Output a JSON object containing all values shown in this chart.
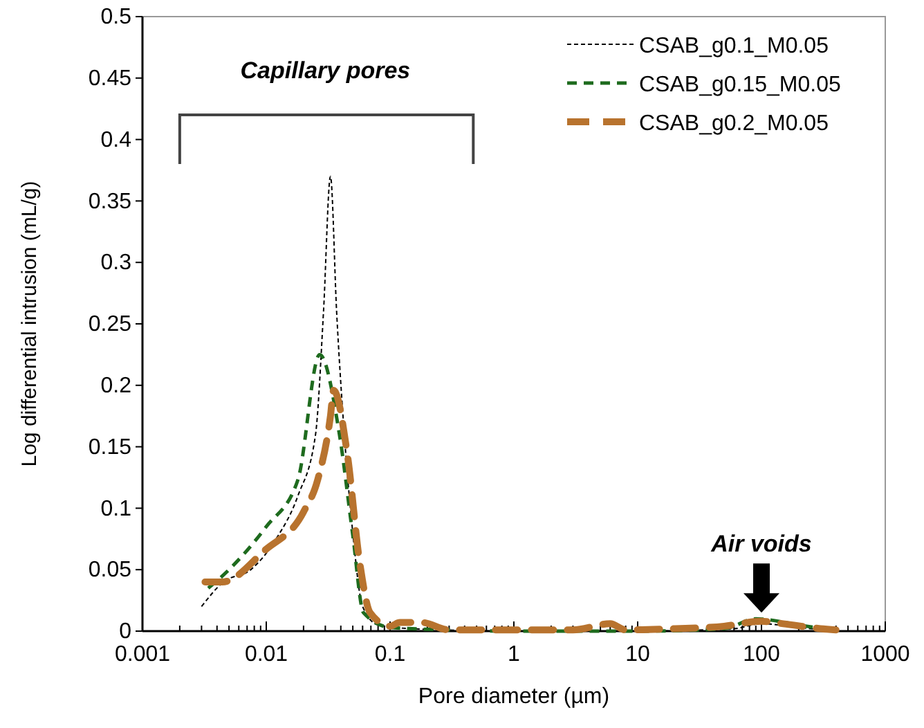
{
  "chart_data": {
    "type": "line",
    "xlabel": "Pore diameter (µm)",
    "ylabel": "Log differential intrusion (mL/g)",
    "log": "x",
    "legend": "top right",
    "grid": false,
    "xlim": [
      0.001,
      1000
    ],
    "ylim": [
      0,
      0.5
    ],
    "xticks": [
      {
        "value": 0.001,
        "label": "0.001"
      },
      {
        "value": 0.002,
        "label": null
      },
      {
        "value": 0.003,
        "label": null
      },
      {
        "value": 0.004,
        "label": null
      },
      {
        "value": 0.005,
        "label": null
      },
      {
        "value": 0.006,
        "label": null
      },
      {
        "value": 0.007,
        "label": null
      },
      {
        "value": 0.008,
        "label": null
      },
      {
        "value": 0.009,
        "label": null
      },
      {
        "value": 0.01,
        "label": "0.01"
      },
      {
        "value": 0.02,
        "label": null
      },
      {
        "value": 0.03,
        "label": null
      },
      {
        "value": 0.04,
        "label": null
      },
      {
        "value": 0.05,
        "label": null
      },
      {
        "value": 0.06,
        "label": null
      },
      {
        "value": 0.07,
        "label": null
      },
      {
        "value": 0.08,
        "label": null
      },
      {
        "value": 0.09,
        "label": null
      },
      {
        "value": 0.1,
        "label": "0.1"
      },
      {
        "value": 0.2,
        "label": null
      },
      {
        "value": 0.3,
        "label": null
      },
      {
        "value": 0.4,
        "label": null
      },
      {
        "value": 0.5,
        "label": null
      },
      {
        "value": 0.6,
        "label": null
      },
      {
        "value": 0.7,
        "label": null
      },
      {
        "value": 0.8,
        "label": null
      },
      {
        "value": 0.9,
        "label": null
      },
      1,
      {
        "value": 2,
        "label": null
      },
      {
        "value": 3,
        "label": null
      },
      {
        "value": 4,
        "label": null
      },
      {
        "value": 5,
        "label": null
      },
      {
        "value": 6,
        "label": null
      },
      {
        "value": 7,
        "label": null
      },
      {
        "value": 8,
        "label": null
      },
      {
        "value": 9,
        "label": null
      },
      10,
      {
        "value": 20,
        "label": null
      },
      {
        "value": 30,
        "label": null
      },
      {
        "value": 40,
        "label": null
      },
      {
        "value": 50,
        "label": null
      },
      {
        "value": 60,
        "label": null
      },
      {
        "value": 70,
        "label": null
      },
      {
        "value": 80,
        "label": null
      },
      {
        "value": 90,
        "label": null
      },
      100,
      {
        "value": 200,
        "label": null
      },
      {
        "value": 300,
        "label": null
      },
      {
        "value": 400,
        "label": null
      },
      {
        "value": 500,
        "label": null
      },
      {
        "value": 600,
        "label": null
      },
      {
        "value": 700,
        "label": null
      },
      {
        "value": 800,
        "label": null
      },
      {
        "value": 900,
        "label": null
      },
      1000
    ],
    "yticks": [
      0,
      0.05,
      0.1,
      0.15,
      0.2,
      0.25,
      0.3,
      0.35,
      0.4,
      0.45,
      0.5
    ],
    "annotations": [
      "Capillary pores",
      "Air voids"
    ],
    "series": [
      {
        "name": "CSAB_g0.1_M0.05",
        "color": "#000000",
        "line_style": "dotted",
        "x": [
          0.003,
          0.0045,
          0.0075,
          0.012,
          0.018,
          0.025,
          0.029,
          0.033,
          0.037,
          0.042,
          0.05,
          0.06,
          0.08,
          0.15,
          1,
          10,
          60,
          100,
          200,
          400
        ],
        "values": [
          0.02,
          0.04,
          0.05,
          0.075,
          0.11,
          0.16,
          0.26,
          0.37,
          0.26,
          0.17,
          0.08,
          0.02,
          0.005,
          0.002,
          0,
          0,
          0.002,
          0.006,
          0.003,
          0
        ]
      },
      {
        "name": "CSAB_g0.15_M0.05",
        "color": "#1e6b1e",
        "line_style": "dashed",
        "x": [
          0.0034,
          0.005,
          0.01,
          0.018,
          0.027,
          0.039,
          0.05,
          0.061,
          0.1,
          0.3,
          1,
          10,
          50,
          90,
          200,
          400
        ],
        "values": [
          0.035,
          0.05,
          0.085,
          0.123,
          0.225,
          0.16,
          0.078,
          0.015,
          0.003,
          0.001,
          0,
          0,
          0.002,
          0.01,
          0.005,
          0
        ]
      },
      {
        "name": "CSAB_g0.2_M0.05",
        "color": "#b8732e",
        "line_style": "dashed",
        "x": [
          0.0032,
          0.0044,
          0.0098,
          0.02,
          0.026,
          0.033,
          0.035,
          0.045,
          0.057,
          0.069,
          0.1,
          0.12,
          0.18,
          0.3,
          1,
          3,
          6,
          8,
          20,
          50,
          100,
          150,
          300,
          400
        ],
        "values": [
          0.04,
          0.04,
          0.066,
          0.097,
          0.123,
          0.175,
          0.196,
          0.145,
          0.055,
          0.015,
          0.004,
          0.007,
          0.007,
          0.001,
          0.001,
          0.001,
          0.006,
          0.001,
          0.002,
          0.004,
          0.008,
          0.006,
          0.002,
          0.001
        ]
      }
    ]
  }
}
